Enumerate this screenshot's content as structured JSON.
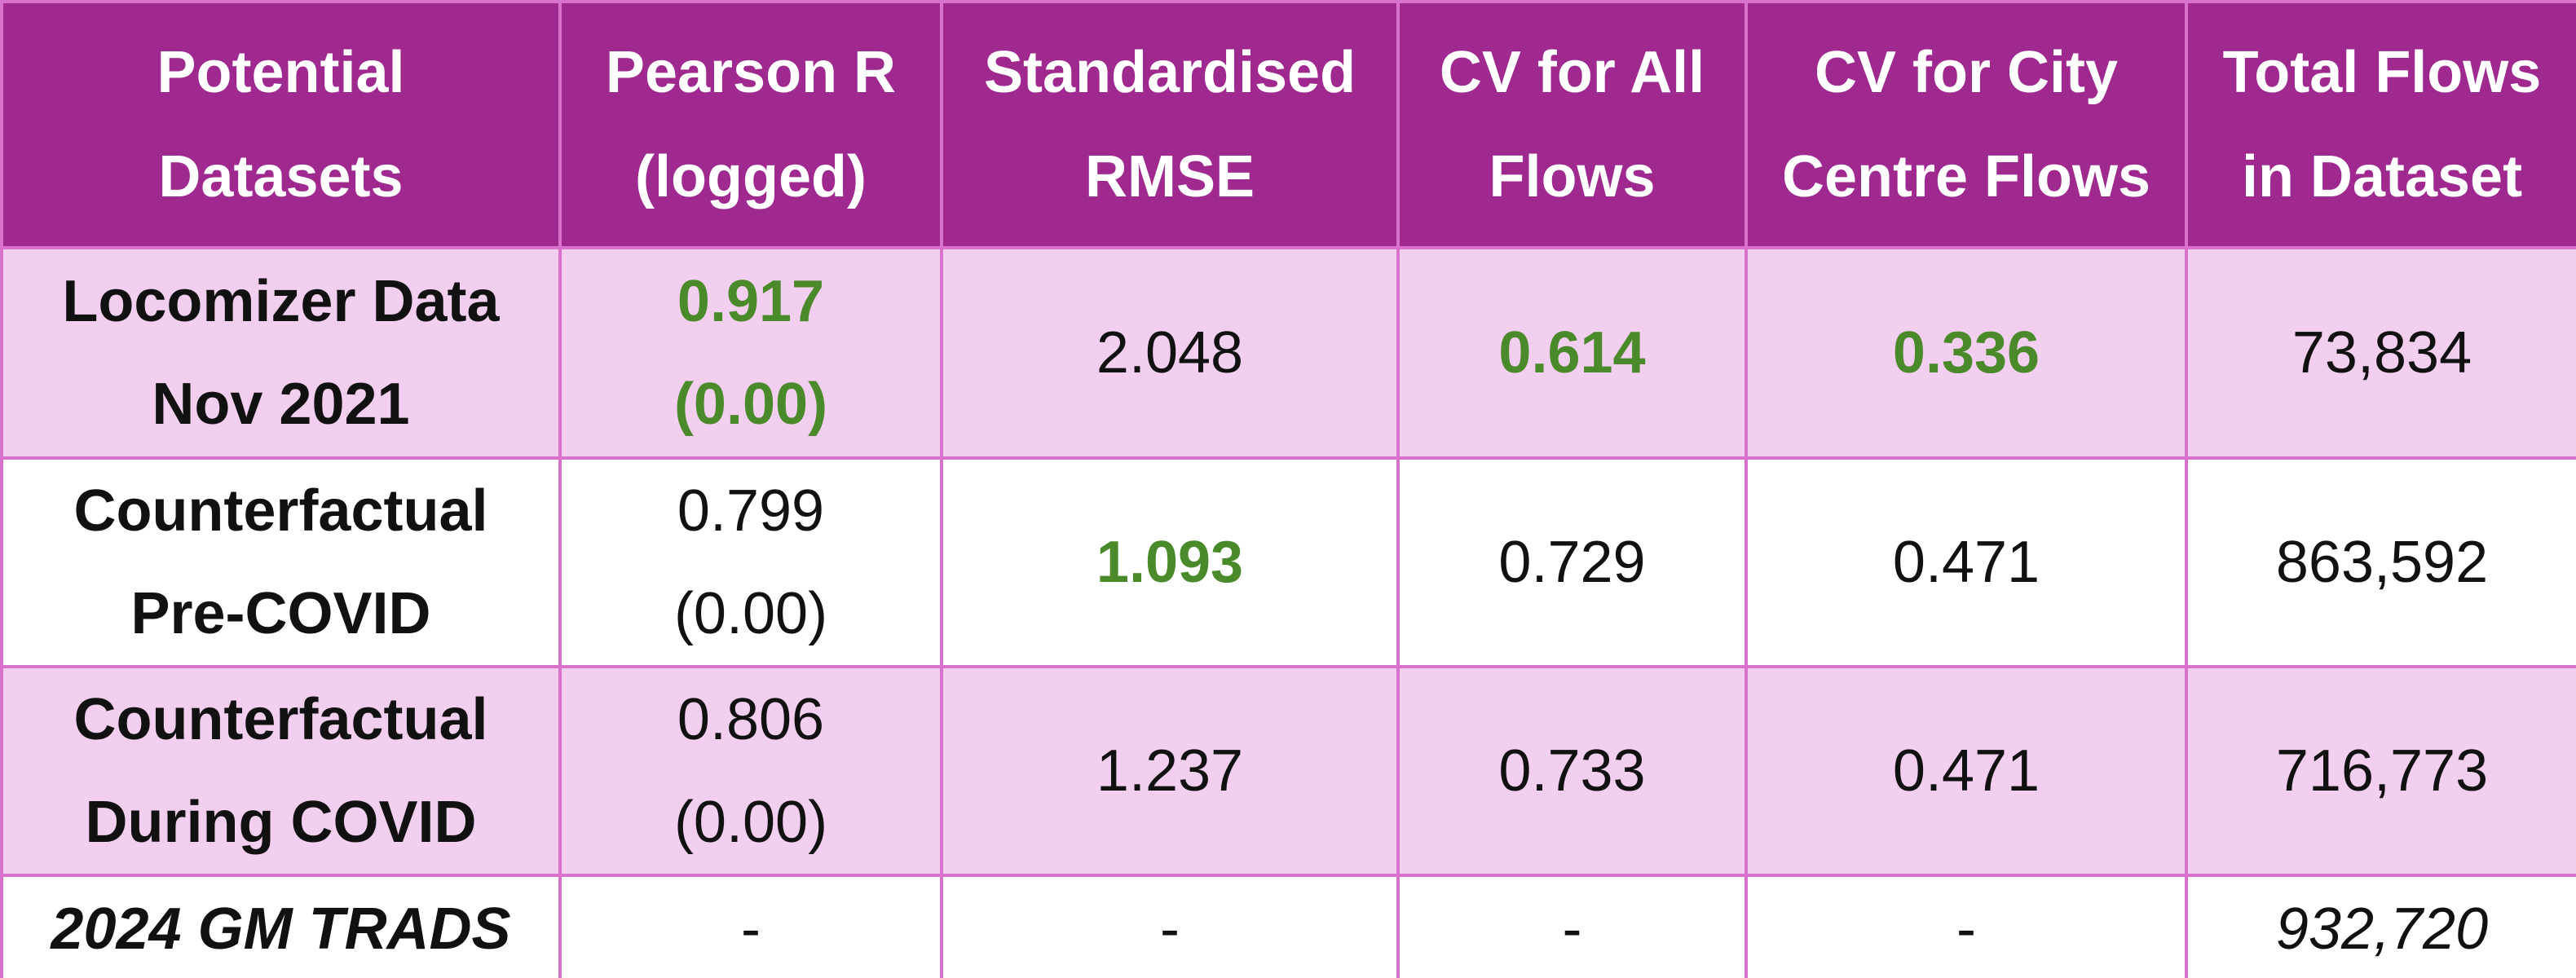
{
  "table": {
    "header_background": "#a0298f",
    "border_color": "#d872cc",
    "highlight_color": "#4a8a2a",
    "header": [
      [
        "Potential",
        "Datasets"
      ],
      [
        "Pearson R",
        "(logged)"
      ],
      [
        "Standardised",
        "RMSE"
      ],
      [
        "CV for All",
        "Flows"
      ],
      [
        "CV for City",
        "Centre Flows"
      ],
      [
        "Total Flows",
        "in Dataset"
      ]
    ],
    "rows": [
      {
        "background": "#f2cfee",
        "italic": false,
        "highlighted": [
          1,
          3,
          4
        ],
        "cells": [
          [
            "Locomizer Data",
            "Nov 2021"
          ],
          [
            "0.917",
            "(0.00)"
          ],
          [
            "2.048"
          ],
          [
            "0.614"
          ],
          [
            "0.336"
          ],
          [
            "73,834"
          ]
        ]
      },
      {
        "background": "#ffffff",
        "italic": false,
        "highlighted": [
          2
        ],
        "cells": [
          [
            "Counterfactual",
            "Pre-COVID"
          ],
          [
            "0.799",
            "(0.00)"
          ],
          [
            "1.093"
          ],
          [
            "0.729"
          ],
          [
            "0.471"
          ],
          [
            "863,592"
          ]
        ]
      },
      {
        "background": "#f2cfee",
        "italic": false,
        "highlighted": [],
        "cells": [
          [
            "Counterfactual",
            "During COVID"
          ],
          [
            "0.806",
            "(0.00)"
          ],
          [
            "1.237"
          ],
          [
            "0.733"
          ],
          [
            "0.471"
          ],
          [
            "716,773"
          ]
        ]
      },
      {
        "background": "#ffffff",
        "italic": true,
        "highlighted": [],
        "cells": [
          [
            "2024 GM TRADS"
          ],
          [
            "-"
          ],
          [
            "-"
          ],
          [
            "-"
          ],
          [
            "-"
          ],
          [
            "932,720"
          ]
        ]
      }
    ]
  }
}
